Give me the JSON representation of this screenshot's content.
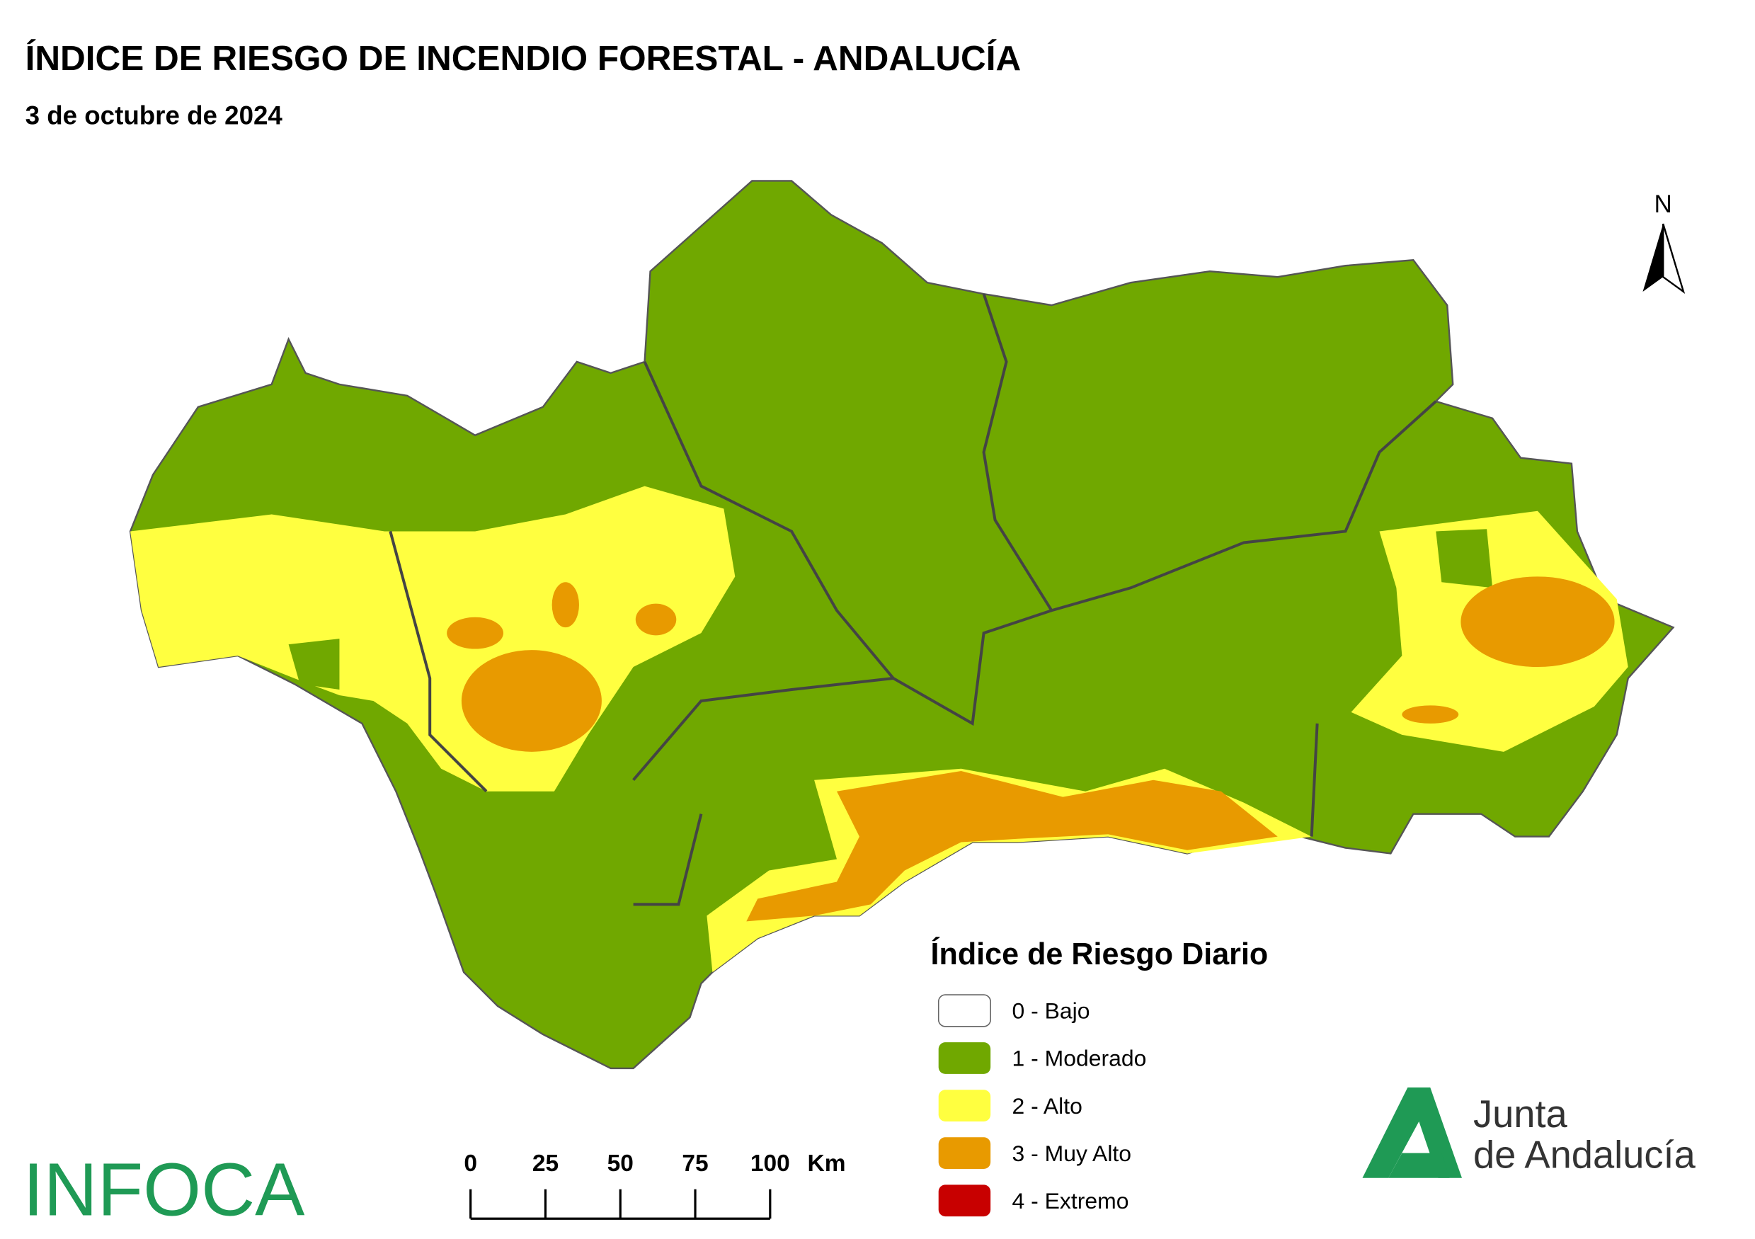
{
  "header": {
    "title": "ÍNDICE DE RIESGO DE INCENDIO FORESTAL - ANDALUCÍA",
    "subtitle": "3 de octubre de 2024"
  },
  "north_arrow": {
    "label": "N"
  },
  "legend": {
    "title": "Índice de Riesgo Diario",
    "items": [
      {
        "label": "0 - Bajo",
        "color": "#ffffff"
      },
      {
        "label": "1 - Moderado",
        "color": "#70a800"
      },
      {
        "label": "2 - Alto",
        "color": "#ffff40"
      },
      {
        "label": "3 - Muy Alto",
        "color": "#e89a00"
      },
      {
        "label": "4 - Extremo",
        "color": "#c80000"
      }
    ]
  },
  "scale_bar": {
    "ticks": [
      0,
      25,
      50,
      75,
      100
    ],
    "unit": "Km"
  },
  "logos": {
    "infoca": "INFOCA",
    "junta": [
      "Junta",
      "de Andalucía"
    ]
  }
}
